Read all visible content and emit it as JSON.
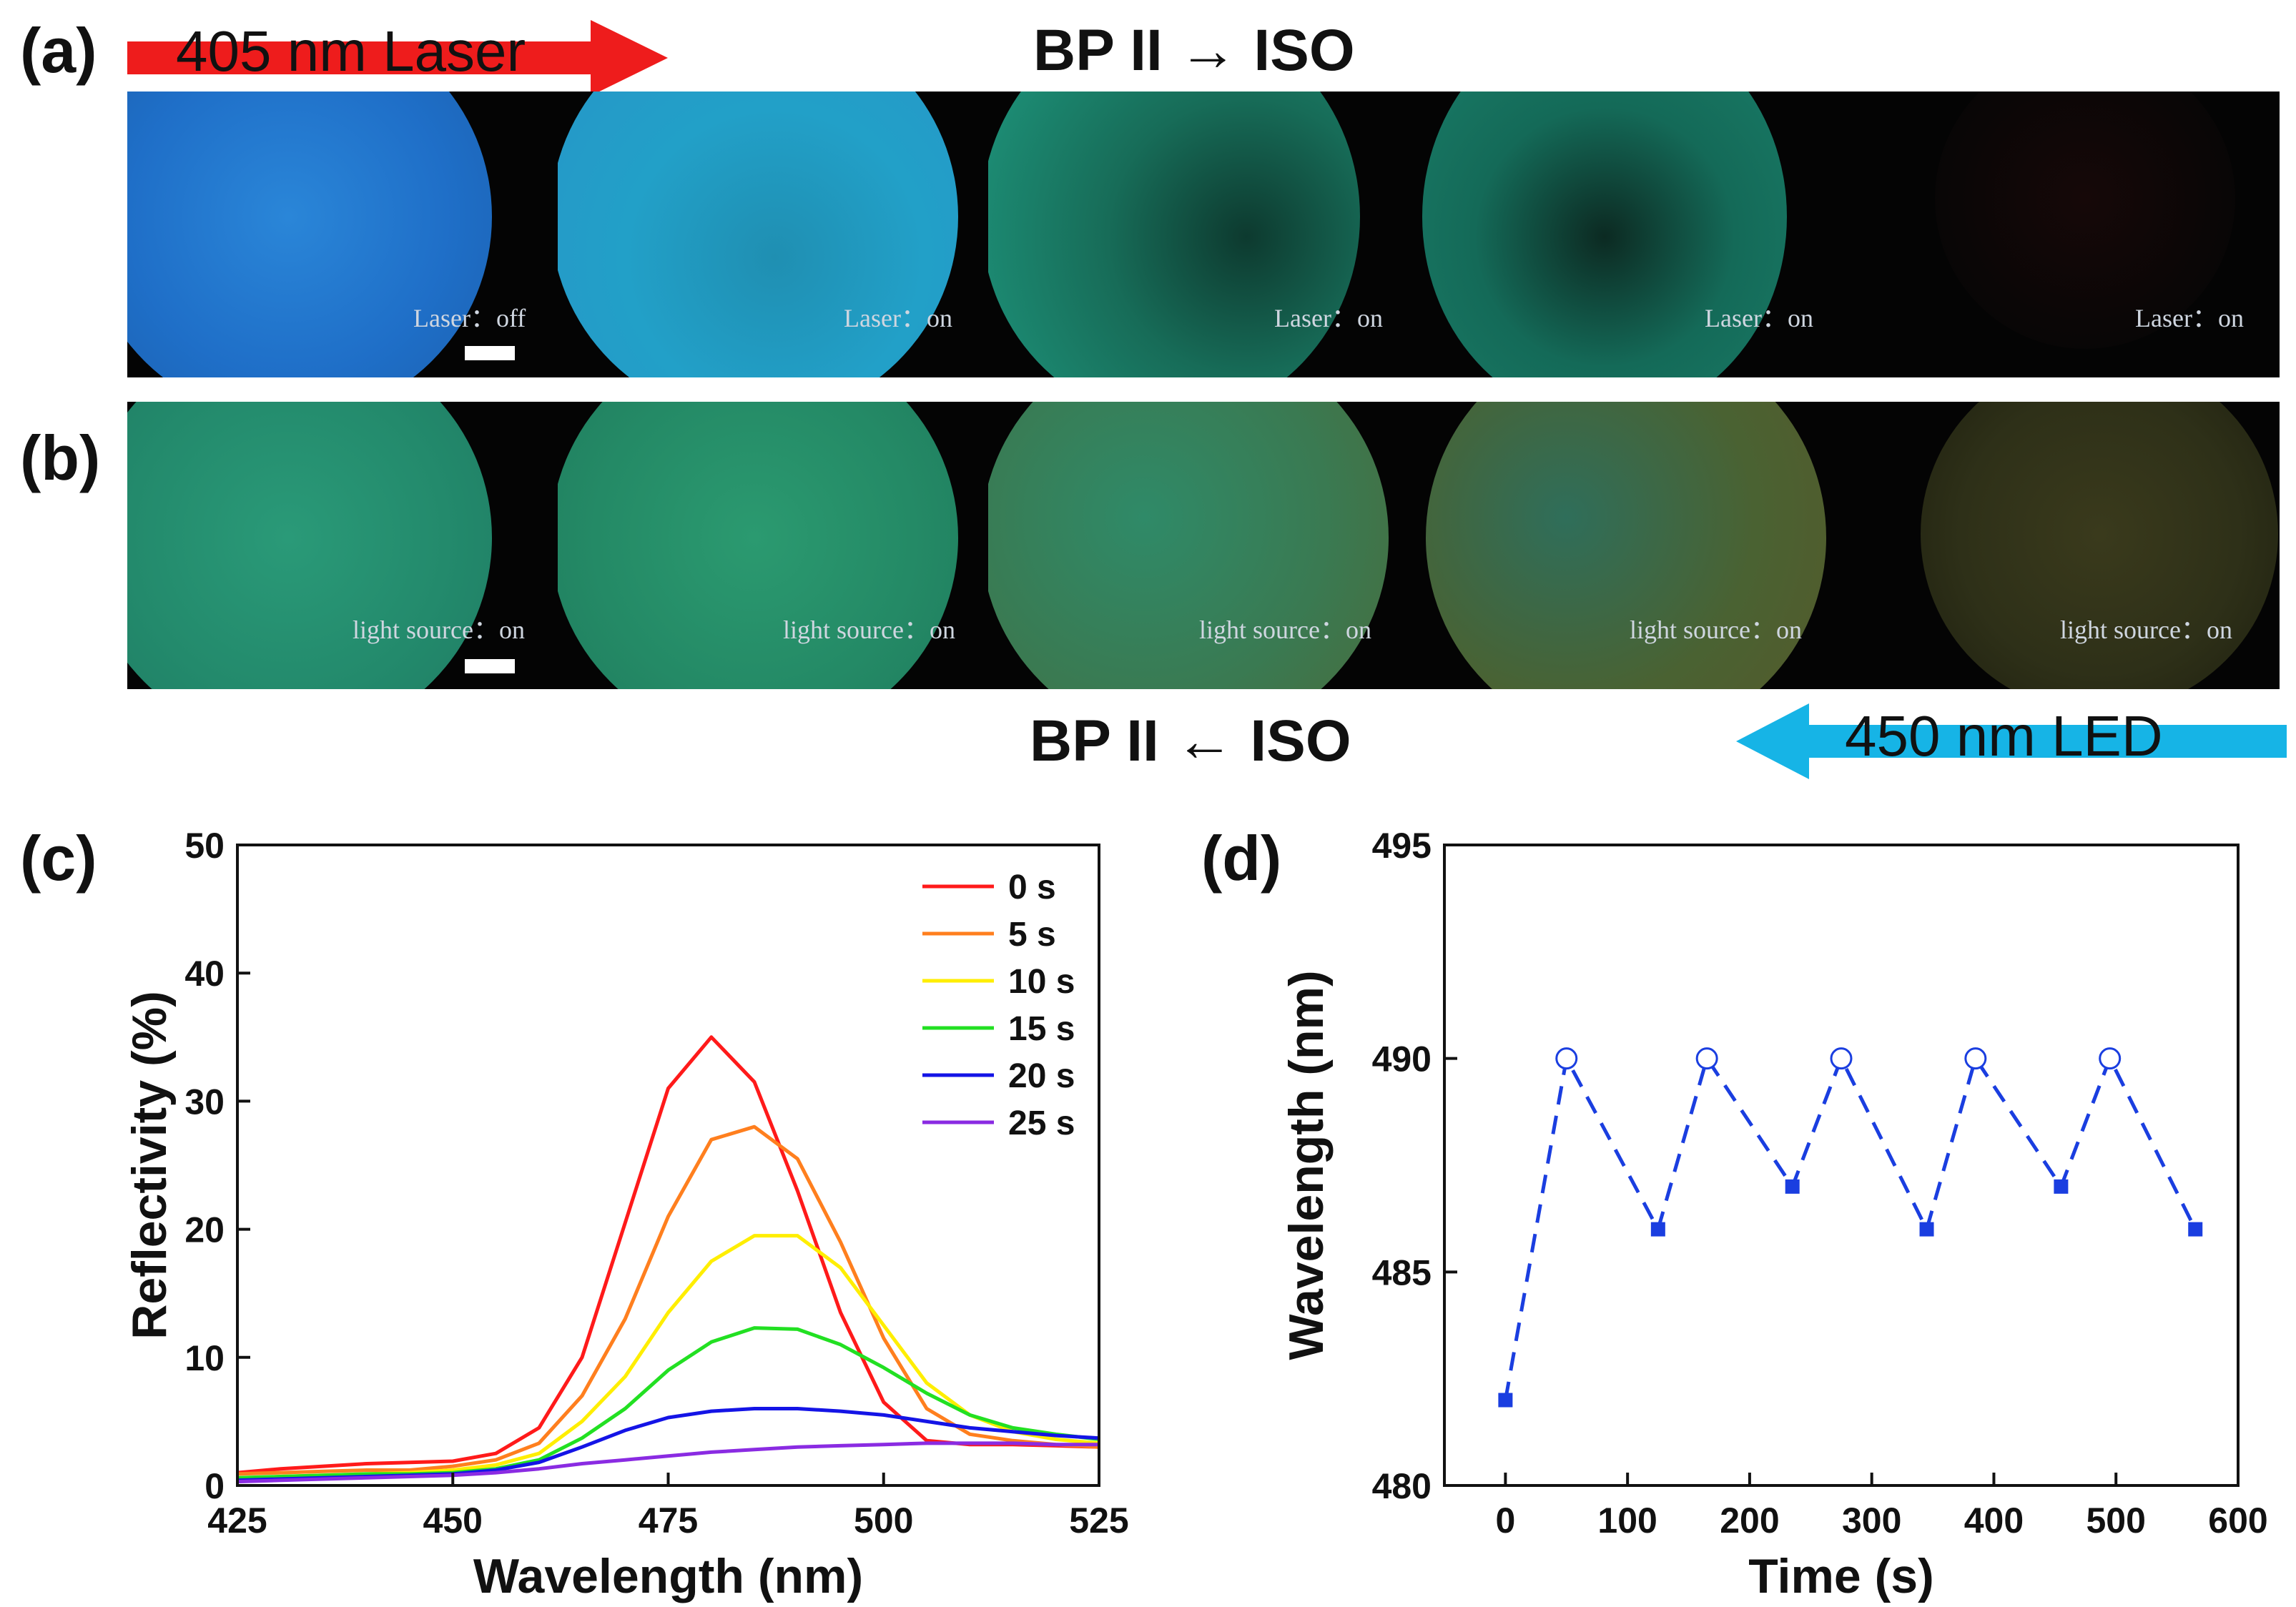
{
  "panel_labels": {
    "a": "(a)",
    "b": "(b)",
    "c": "(c)",
    "d": "(d)"
  },
  "row_a": {
    "arrow_text": "405 nm Laser",
    "arrow_color": "#ee1c1c",
    "heading": "BP II → ISO",
    "captions": [
      "Laser：off",
      "Laser：on",
      "Laser：on",
      "Laser：on",
      "Laser：on"
    ]
  },
  "row_b": {
    "arrow_text": "450 nm LED",
    "arrow_color": "#16b4e6",
    "heading": "BP II ← ISO",
    "captions": [
      "light source：on",
      "light source：on",
      "light source：on",
      "light source：on",
      "light source：on"
    ]
  },
  "chart_data": [
    {
      "type": "line",
      "xlabel": "Wavelength (nm)",
      "ylabel": "Reflectivity (%)",
      "xlim": [
        425,
        525
      ],
      "ylim": [
        0,
        50
      ],
      "xticks": [
        425,
        450,
        475,
        500,
        525
      ],
      "yticks": [
        0,
        10,
        20,
        30,
        40,
        50
      ],
      "legend_position": "top-right",
      "x": [
        425,
        430,
        435,
        440,
        445,
        450,
        455,
        460,
        465,
        470,
        475,
        480,
        485,
        490,
        495,
        500,
        505,
        510,
        515,
        520,
        525
      ],
      "series": [
        {
          "name": "0 s",
          "color": "#ff1a1a",
          "values": [
            1.0,
            1.3,
            1.5,
            1.7,
            1.8,
            1.9,
            2.5,
            4.5,
            10.0,
            20.5,
            31.0,
            35.0,
            31.5,
            23.0,
            13.5,
            6.5,
            3.5,
            3.2,
            3.2,
            3.1,
            3.0
          ]
        },
        {
          "name": "5 s",
          "color": "#ff7f1e",
          "values": [
            0.9,
            1.0,
            1.1,
            1.2,
            1.2,
            1.5,
            2.0,
            3.3,
            7.0,
            13.0,
            21.0,
            27.0,
            28.0,
            25.5,
            19.0,
            11.5,
            6.0,
            4.0,
            3.5,
            3.2,
            3.0
          ]
        },
        {
          "name": "10 s",
          "color": "#ffee00",
          "values": [
            0.5,
            0.7,
            0.8,
            0.9,
            1.0,
            1.2,
            1.6,
            2.5,
            5.0,
            8.5,
            13.5,
            17.5,
            19.5,
            19.5,
            17.0,
            12.5,
            8.0,
            5.5,
            4.2,
            3.6,
            3.3
          ]
        },
        {
          "name": "15 s",
          "color": "#22e022",
          "values": [
            0.6,
            0.7,
            0.8,
            0.9,
            0.9,
            1.0,
            1.3,
            2.0,
            3.7,
            6.0,
            9.0,
            11.2,
            12.3,
            12.2,
            11.0,
            9.2,
            7.2,
            5.5,
            4.5,
            4.0,
            3.6
          ]
        },
        {
          "name": "20 s",
          "color": "#1414e6",
          "values": [
            0.4,
            0.5,
            0.6,
            0.7,
            0.8,
            0.9,
            1.2,
            1.8,
            3.0,
            4.3,
            5.3,
            5.8,
            6.0,
            6.0,
            5.8,
            5.5,
            5.0,
            4.5,
            4.2,
            3.9,
            3.7
          ]
        },
        {
          "name": "25 s",
          "color": "#8a2be2",
          "values": [
            0.3,
            0.4,
            0.5,
            0.6,
            0.7,
            0.8,
            1.0,
            1.3,
            1.7,
            2.0,
            2.3,
            2.6,
            2.8,
            3.0,
            3.1,
            3.2,
            3.3,
            3.3,
            3.3,
            3.2,
            3.2
          ]
        }
      ]
    },
    {
      "type": "line",
      "xlabel": "Time (s)",
      "ylabel": "Wavelength (nm)",
      "xlim": [
        -50,
        600
      ],
      "ylim": [
        480,
        495
      ],
      "xticks": [
        0,
        100,
        200,
        300,
        400,
        500,
        600
      ],
      "yticks": [
        480,
        485,
        490,
        495
      ],
      "line_style": "dashed",
      "color": "#1a3ee0",
      "points": [
        {
          "x": 0,
          "y": 482,
          "marker": "filled-square"
        },
        {
          "x": 50,
          "y": 490,
          "marker": "open-circle"
        },
        {
          "x": 125,
          "y": 486,
          "marker": "filled-square"
        },
        {
          "x": 165,
          "y": 490,
          "marker": "open-circle"
        },
        {
          "x": 235,
          "y": 487,
          "marker": "filled-square"
        },
        {
          "x": 275,
          "y": 490,
          "marker": "open-circle"
        },
        {
          "x": 345,
          "y": 486,
          "marker": "filled-square"
        },
        {
          "x": 385,
          "y": 490,
          "marker": "open-circle"
        },
        {
          "x": 455,
          "y": 487,
          "marker": "filled-square"
        },
        {
          "x": 495,
          "y": 490,
          "marker": "open-circle"
        },
        {
          "x": 565,
          "y": 486,
          "marker": "filled-square"
        }
      ]
    }
  ]
}
